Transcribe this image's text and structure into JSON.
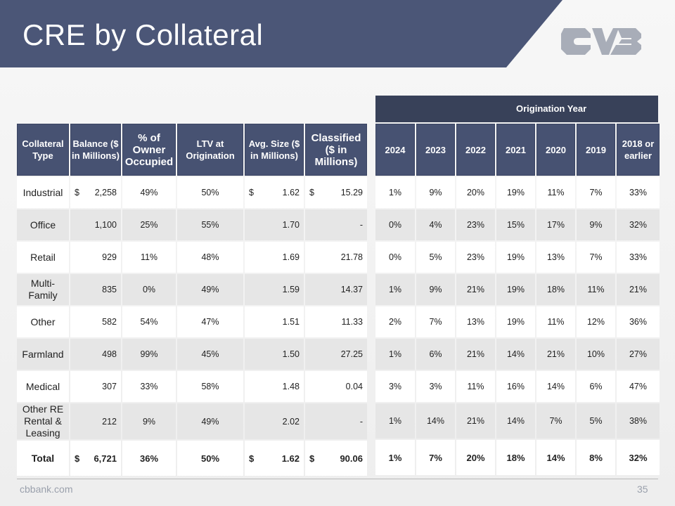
{
  "header": {
    "title": "CRE by Collateral"
  },
  "logo": {
    "name": "cvb-logo-icon",
    "color": "#a8adb8"
  },
  "colors": {
    "header": "#4b5677",
    "banner": "#384159",
    "table_header": "#475272"
  },
  "table": {
    "left_headers": [
      "Collateral Type",
      "Balance ($ in Millions)",
      "% of Owner Occupied",
      "LTV at Origination",
      "Avg. Size ($ in Millions)",
      "Classified ($ in Millions)"
    ],
    "origination_title": "Origination Year",
    "year_headers": [
      "2024",
      "2023",
      "2022",
      "2021",
      "2020",
      "2019",
      "2018 or earlier"
    ],
    "rows": [
      {
        "type": "Industrial",
        "balance_cur": "$",
        "balance": "2,258",
        "owner": "49%",
        "ltv": "50%",
        "avg_cur": "$",
        "avg": "1.62",
        "class_cur": "$",
        "classified": "15.29",
        "years": [
          "1%",
          "9%",
          "20%",
          "19%",
          "11%",
          "7%",
          "33%"
        ]
      },
      {
        "type": "Office",
        "balance_cur": "",
        "balance": "1,100",
        "owner": "25%",
        "ltv": "55%",
        "avg_cur": "",
        "avg": "1.70",
        "class_cur": "",
        "classified": "-",
        "years": [
          "0%",
          "4%",
          "23%",
          "15%",
          "17%",
          "9%",
          "32%"
        ]
      },
      {
        "type": "Retail",
        "balance_cur": "",
        "balance": "929",
        "owner": "11%",
        "ltv": "48%",
        "avg_cur": "",
        "avg": "1.69",
        "class_cur": "",
        "classified": "21.78",
        "years": [
          "0%",
          "5%",
          "23%",
          "19%",
          "13%",
          "7%",
          "33%"
        ]
      },
      {
        "type": "Multi-Family",
        "balance_cur": "",
        "balance": "835",
        "owner": "0%",
        "ltv": "49%",
        "avg_cur": "",
        "avg": "1.59",
        "class_cur": "",
        "classified": "14.37",
        "years": [
          "1%",
          "9%",
          "21%",
          "19%",
          "18%",
          "11%",
          "21%"
        ]
      },
      {
        "type": "Other",
        "balance_cur": "",
        "balance": "582",
        "owner": "54%",
        "ltv": "47%",
        "avg_cur": "",
        "avg": "1.51",
        "class_cur": "",
        "classified": "11.33",
        "years": [
          "2%",
          "7%",
          "13%",
          "19%",
          "11%",
          "12%",
          "36%"
        ]
      },
      {
        "type": "Farmland",
        "balance_cur": "",
        "balance": "498",
        "owner": "99%",
        "ltv": "45%",
        "avg_cur": "",
        "avg": "1.50",
        "class_cur": "",
        "classified": "27.25",
        "years": [
          "1%",
          "6%",
          "21%",
          "14%",
          "21%",
          "10%",
          "27%"
        ]
      },
      {
        "type": "Medical",
        "balance_cur": "",
        "balance": "307",
        "owner": "33%",
        "ltv": "58%",
        "avg_cur": "",
        "avg": "1.48",
        "class_cur": "",
        "classified": "0.04",
        "years": [
          "3%",
          "3%",
          "11%",
          "16%",
          "14%",
          "6%",
          "47%"
        ]
      },
      {
        "type": "Other RE Rental & Leasing",
        "balance_cur": "",
        "balance": "212",
        "owner": "9%",
        "ltv": "49%",
        "avg_cur": "",
        "avg": "2.02",
        "class_cur": "",
        "classified": "-",
        "years": [
          "1%",
          "14%",
          "21%",
          "14%",
          "7%",
          "5%",
          "38%"
        ]
      }
    ],
    "total": {
      "type": "Total",
      "balance_cur": "$",
      "balance": "6,721",
      "owner": "36%",
      "ltv": "50%",
      "avg_cur": "$",
      "avg": "1.62",
      "class_cur": "$",
      "classified": "90.06",
      "years": [
        "1%",
        "7%",
        "20%",
        "18%",
        "14%",
        "8%",
        "32%"
      ]
    }
  },
  "footer": {
    "site": "cbbank.com",
    "page": "35"
  }
}
